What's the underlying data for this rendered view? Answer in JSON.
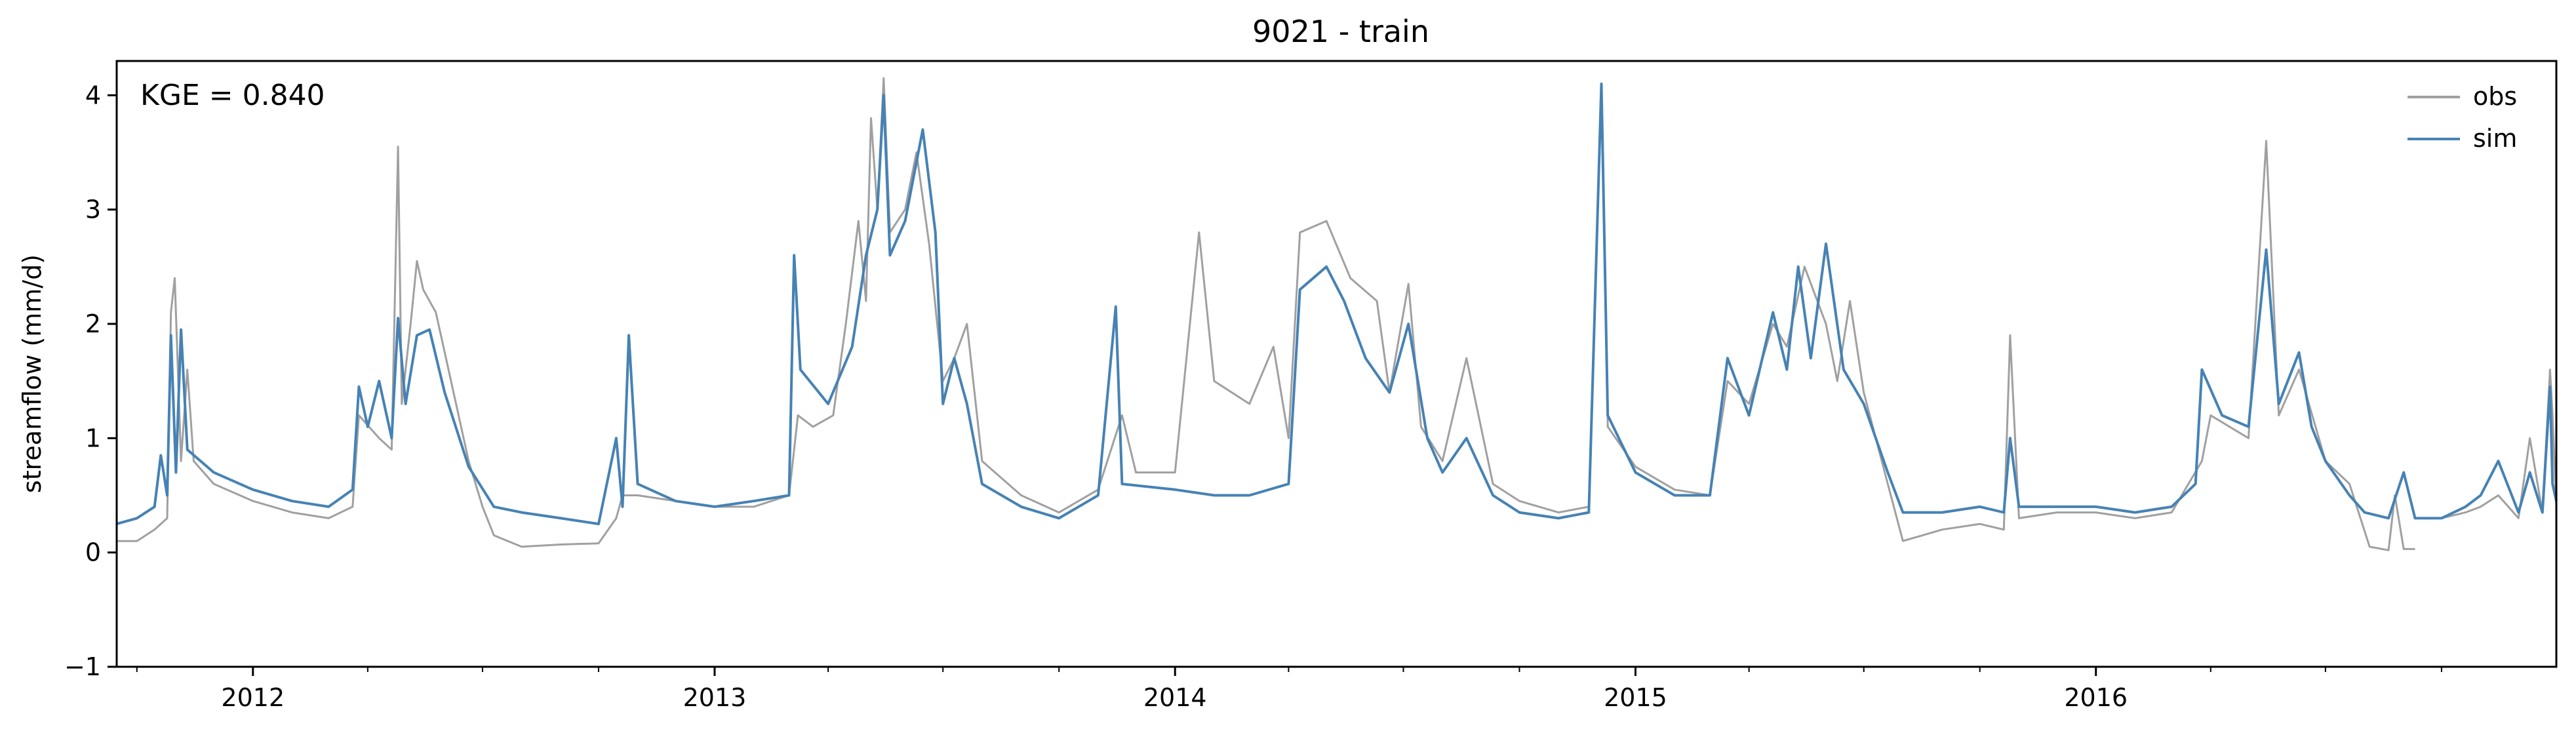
{
  "chart_data": {
    "type": "line",
    "title": "9021 - train",
    "ylabel": "streamflow (mm/d)",
    "xlabel": "",
    "annotation": "KGE = 0.840",
    "ylim": [
      -1,
      4.3
    ],
    "xlim": [
      "2011-09-15",
      "2016-12-31"
    ],
    "y_ticks": [
      -1,
      0,
      1,
      2,
      3,
      4
    ],
    "y_tick_labels": [
      "−1",
      "0",
      "1",
      "2",
      "3",
      "4"
    ],
    "x_major_ticks": [
      "2012-01-01",
      "2013-01-01",
      "2014-01-01",
      "2015-01-01",
      "2016-01-01"
    ],
    "x_tick_labels": [
      "2012",
      "2013",
      "2014",
      "2015",
      "2016"
    ],
    "grid": false,
    "legend": {
      "position": "top-right",
      "entries": [
        "obs",
        "sim"
      ]
    },
    "series": [
      {
        "name": "obs",
        "color": "#a0a0a0",
        "points": [
          [
            "2011-09-15",
            0.1
          ],
          [
            "2011-10-01",
            0.1
          ],
          [
            "2011-10-15",
            0.2
          ],
          [
            "2011-10-25",
            0.3
          ],
          [
            "2011-10-28",
            2.1
          ],
          [
            "2011-10-31",
            2.4
          ],
          [
            "2011-11-05",
            0.8
          ],
          [
            "2011-11-10",
            1.6
          ],
          [
            "2011-11-15",
            0.8
          ],
          [
            "2011-12-01",
            0.6
          ],
          [
            "2012-01-01",
            0.45
          ],
          [
            "2012-02-01",
            0.35
          ],
          [
            "2012-03-01",
            0.3
          ],
          [
            "2012-03-20",
            0.4
          ],
          [
            "2012-03-25",
            1.2
          ],
          [
            "2012-04-10",
            1.0
          ],
          [
            "2012-04-20",
            0.9
          ],
          [
            "2012-04-25",
            3.55
          ],
          [
            "2012-04-28",
            1.3
          ],
          [
            "2012-05-05",
            2.0
          ],
          [
            "2012-05-10",
            2.55
          ],
          [
            "2012-05-15",
            2.3
          ],
          [
            "2012-05-25",
            2.1
          ],
          [
            "2012-06-10",
            1.3
          ],
          [
            "2012-06-20",
            0.8
          ],
          [
            "2012-07-01",
            0.4
          ],
          [
            "2012-07-10",
            0.15
          ],
          [
            "2012-08-01",
            0.05
          ],
          [
            "2012-09-01",
            0.07
          ],
          [
            "2012-10-01",
            0.08
          ],
          [
            "2012-10-15",
            0.3
          ],
          [
            "2012-10-20",
            0.5
          ],
          [
            "2012-11-01",
            0.5
          ],
          [
            "2012-12-01",
            0.45
          ],
          [
            "2013-01-01",
            0.4
          ],
          [
            "2013-02-01",
            0.4
          ],
          [
            "2013-03-01",
            0.5
          ],
          [
            "2013-03-08",
            1.2
          ],
          [
            "2013-03-20",
            1.1
          ],
          [
            "2013-04-05",
            1.2
          ],
          [
            "2013-04-15",
            2.0
          ],
          [
            "2013-04-25",
            2.9
          ],
          [
            "2013-05-01",
            2.2
          ],
          [
            "2013-05-05",
            3.8
          ],
          [
            "2013-05-10",
            3.0
          ],
          [
            "2013-05-15",
            4.15
          ],
          [
            "2013-05-20",
            2.8
          ],
          [
            "2013-06-01",
            3.0
          ],
          [
            "2013-06-10",
            3.5
          ],
          [
            "2013-06-20",
            2.7
          ],
          [
            "2013-07-01",
            1.5
          ],
          [
            "2013-07-10",
            1.7
          ],
          [
            "2013-07-20",
            2.0
          ],
          [
            "2013-08-01",
            0.8
          ],
          [
            "2013-09-01",
            0.5
          ],
          [
            "2013-10-01",
            0.35
          ],
          [
            "2013-11-01",
            0.55
          ],
          [
            "2013-11-20",
            1.2
          ],
          [
            "2013-12-01",
            0.7
          ],
          [
            "2014-01-01",
            0.7
          ],
          [
            "2014-01-20",
            2.8
          ],
          [
            "2014-02-01",
            1.5
          ],
          [
            "2014-03-01",
            1.3
          ],
          [
            "2014-03-20",
            1.8
          ],
          [
            "2014-04-01",
            1.0
          ],
          [
            "2014-04-10",
            2.8
          ],
          [
            "2014-05-01",
            2.9
          ],
          [
            "2014-05-20",
            2.4
          ],
          [
            "2014-06-10",
            2.2
          ],
          [
            "2014-06-20",
            1.4
          ],
          [
            "2014-07-05",
            2.35
          ],
          [
            "2014-07-15",
            1.1
          ],
          [
            "2014-08-01",
            0.8
          ],
          [
            "2014-08-20",
            1.7
          ],
          [
            "2014-09-10",
            0.6
          ],
          [
            "2014-10-01",
            0.45
          ],
          [
            "2014-11-01",
            0.35
          ],
          [
            "2014-11-25",
            0.4
          ],
          [
            "2014-12-05",
            4.1
          ],
          [
            "2014-12-10",
            1.1
          ],
          [
            "2015-01-01",
            0.75
          ],
          [
            "2015-02-01",
            0.55
          ],
          [
            "2015-03-01",
            0.5
          ],
          [
            "2015-03-15",
            1.5
          ],
          [
            "2015-04-01",
            1.3
          ],
          [
            "2015-04-20",
            2.0
          ],
          [
            "2015-05-01",
            1.8
          ],
          [
            "2015-05-15",
            2.5
          ],
          [
            "2015-06-01",
            2.0
          ],
          [
            "2015-06-10",
            1.5
          ],
          [
            "2015-06-20",
            2.2
          ],
          [
            "2015-07-01",
            1.4
          ],
          [
            "2015-07-20",
            0.6
          ],
          [
            "2015-08-01",
            0.1
          ],
          [
            "2015-09-01",
            0.2
          ],
          [
            "2015-10-01",
            0.25
          ],
          [
            "2015-10-20",
            0.2
          ],
          [
            "2015-10-25",
            1.9
          ],
          [
            "2015-11-01",
            0.3
          ],
          [
            "2015-12-01",
            0.35
          ],
          [
            "2016-01-01",
            0.35
          ],
          [
            "2016-02-01",
            0.3
          ],
          [
            "2016-03-01",
            0.35
          ],
          [
            "2016-03-25",
            0.8
          ],
          [
            "2016-04-01",
            1.2
          ],
          [
            "2016-05-01",
            1.0
          ],
          [
            "2016-05-15",
            3.6
          ],
          [
            "2016-05-25",
            1.2
          ],
          [
            "2016-06-10",
            1.6
          ],
          [
            "2016-07-01",
            0.8
          ],
          [
            "2016-07-20",
            0.6
          ],
          [
            "2016-08-05",
            0.05
          ],
          [
            "2016-08-20",
            0.02
          ],
          [
            "2016-08-25",
            0.5
          ],
          [
            "2016-09-01",
            0.03
          ],
          [
            "2016-09-10",
            0.03
          ]
        ],
        "segments_after_gap": [
          [
            "2016-10-01",
            0.3
          ],
          [
            "2016-10-20",
            0.35
          ],
          [
            "2016-11-01",
            0.4
          ],
          [
            "2016-11-15",
            0.5
          ],
          [
            "2016-12-01",
            0.3
          ],
          [
            "2016-12-10",
            1.0
          ],
          [
            "2016-12-20",
            0.35
          ],
          [
            "2016-12-26",
            1.6
          ],
          [
            "2016-12-28",
            1.2
          ],
          [
            "2016-12-31",
            0.4
          ]
        ]
      },
      {
        "name": "sim",
        "color": "#4682b4",
        "points": [
          [
            "2011-09-15",
            0.25
          ],
          [
            "2011-10-01",
            0.3
          ],
          [
            "2011-10-15",
            0.4
          ],
          [
            "2011-10-20",
            0.85
          ],
          [
            "2011-10-25",
            0.5
          ],
          [
            "2011-10-28",
            1.9
          ],
          [
            "2011-11-01",
            0.7
          ],
          [
            "2011-11-05",
            1.95
          ],
          [
            "2011-11-10",
            0.9
          ],
          [
            "2011-12-01",
            0.7
          ],
          [
            "2012-01-01",
            0.55
          ],
          [
            "2012-02-01",
            0.45
          ],
          [
            "2012-03-01",
            0.4
          ],
          [
            "2012-03-20",
            0.55
          ],
          [
            "2012-03-25",
            1.45
          ],
          [
            "2012-04-01",
            1.1
          ],
          [
            "2012-04-10",
            1.5
          ],
          [
            "2012-04-20",
            1.0
          ],
          [
            "2012-04-25",
            2.05
          ],
          [
            "2012-05-01",
            1.3
          ],
          [
            "2012-05-10",
            1.9
          ],
          [
            "2012-05-20",
            1.95
          ],
          [
            "2012-06-01",
            1.4
          ],
          [
            "2012-06-20",
            0.75
          ],
          [
            "2012-07-10",
            0.4
          ],
          [
            "2012-08-01",
            0.35
          ],
          [
            "2012-09-01",
            0.3
          ],
          [
            "2012-10-01",
            0.25
          ],
          [
            "2012-10-15",
            1.0
          ],
          [
            "2012-10-20",
            0.4
          ],
          [
            "2012-10-25",
            1.9
          ],
          [
            "2012-11-01",
            0.6
          ],
          [
            "2012-12-01",
            0.45
          ],
          [
            "2013-01-01",
            0.4
          ],
          [
            "2013-02-01",
            0.45
          ],
          [
            "2013-03-01",
            0.5
          ],
          [
            "2013-03-05",
            2.6
          ],
          [
            "2013-03-10",
            1.6
          ],
          [
            "2013-04-01",
            1.3
          ],
          [
            "2013-04-20",
            1.8
          ],
          [
            "2013-05-01",
            2.6
          ],
          [
            "2013-05-10",
            3.0
          ],
          [
            "2013-05-15",
            4.0
          ],
          [
            "2013-05-20",
            2.6
          ],
          [
            "2013-06-01",
            2.9
          ],
          [
            "2013-06-15",
            3.7
          ],
          [
            "2013-06-25",
            2.8
          ],
          [
            "2013-07-01",
            1.3
          ],
          [
            "2013-07-10",
            1.7
          ],
          [
            "2013-07-20",
            1.3
          ],
          [
            "2013-08-01",
            0.6
          ],
          [
            "2013-09-01",
            0.4
          ],
          [
            "2013-10-01",
            0.3
          ],
          [
            "2013-11-01",
            0.5
          ],
          [
            "2013-11-15",
            2.15
          ],
          [
            "2013-11-20",
            0.6
          ],
          [
            "2014-01-01",
            0.55
          ],
          [
            "2014-02-01",
            0.5
          ],
          [
            "2014-03-01",
            0.5
          ],
          [
            "2014-04-01",
            0.6
          ],
          [
            "2014-04-10",
            2.3
          ],
          [
            "2014-05-01",
            2.5
          ],
          [
            "2014-05-15",
            2.2
          ],
          [
            "2014-06-01",
            1.7
          ],
          [
            "2014-06-20",
            1.4
          ],
          [
            "2014-07-05",
            2.0
          ],
          [
            "2014-07-20",
            1.0
          ],
          [
            "2014-08-01",
            0.7
          ],
          [
            "2014-08-20",
            1.0
          ],
          [
            "2014-09-10",
            0.5
          ],
          [
            "2014-10-01",
            0.35
          ],
          [
            "2014-11-01",
            0.3
          ],
          [
            "2014-11-25",
            0.35
          ],
          [
            "2014-12-05",
            4.1
          ],
          [
            "2014-12-10",
            1.2
          ],
          [
            "2015-01-01",
            0.7
          ],
          [
            "2015-02-01",
            0.5
          ],
          [
            "2015-03-01",
            0.5
          ],
          [
            "2015-03-15",
            1.7
          ],
          [
            "2015-04-01",
            1.2
          ],
          [
            "2015-04-20",
            2.1
          ],
          [
            "2015-05-01",
            1.6
          ],
          [
            "2015-05-10",
            2.5
          ],
          [
            "2015-05-20",
            1.7
          ],
          [
            "2015-06-01",
            2.7
          ],
          [
            "2015-06-15",
            1.6
          ],
          [
            "2015-07-01",
            1.3
          ],
          [
            "2015-07-20",
            0.7
          ],
          [
            "2015-08-01",
            0.35
          ],
          [
            "2015-09-01",
            0.35
          ],
          [
            "2015-10-01",
            0.4
          ],
          [
            "2015-10-20",
            0.35
          ],
          [
            "2015-10-25",
            1.0
          ],
          [
            "2015-11-01",
            0.4
          ],
          [
            "2015-12-01",
            0.4
          ],
          [
            "2016-01-01",
            0.4
          ],
          [
            "2016-02-01",
            0.35
          ],
          [
            "2016-03-01",
            0.4
          ],
          [
            "2016-03-20",
            0.6
          ],
          [
            "2016-03-25",
            1.6
          ],
          [
            "2016-04-10",
            1.2
          ],
          [
            "2016-05-01",
            1.1
          ],
          [
            "2016-05-15",
            2.65
          ],
          [
            "2016-05-25",
            1.3
          ],
          [
            "2016-06-10",
            1.75
          ],
          [
            "2016-06-20",
            1.1
          ],
          [
            "2016-07-01",
            0.8
          ],
          [
            "2016-07-20",
            0.5
          ],
          [
            "2016-08-01",
            0.35
          ],
          [
            "2016-08-20",
            0.3
          ],
          [
            "2016-09-01",
            0.7
          ],
          [
            "2016-09-10",
            0.3
          ],
          [
            "2016-10-01",
            0.3
          ],
          [
            "2016-10-20",
            0.4
          ],
          [
            "2016-11-01",
            0.5
          ],
          [
            "2016-11-15",
            0.8
          ],
          [
            "2016-12-01",
            0.35
          ],
          [
            "2016-12-10",
            0.7
          ],
          [
            "2016-12-20",
            0.35
          ],
          [
            "2016-12-26",
            1.45
          ],
          [
            "2016-12-28",
            0.6
          ],
          [
            "2016-12-31",
            0.45
          ]
        ]
      }
    ]
  }
}
